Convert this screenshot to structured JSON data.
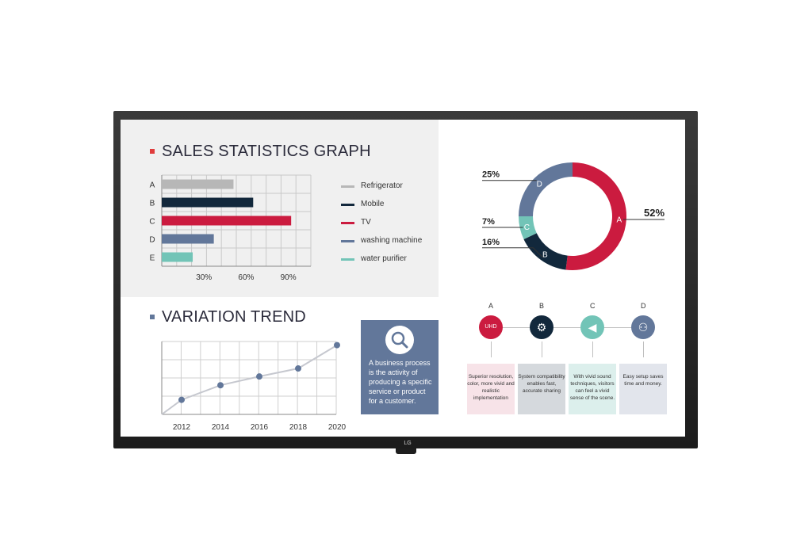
{
  "sales_section": {
    "title": "SALES STATISTICS GRAPH",
    "legend": [
      {
        "label": "Refrigerator",
        "color": "#b7b7b7"
      },
      {
        "label": "Mobile",
        "color": "#12283c"
      },
      {
        "label": "TV",
        "color": "#cb1b3f"
      },
      {
        "label": "washing machine",
        "color": "#62779a"
      },
      {
        "label": "water purifier",
        "color": "#72c4b7"
      }
    ]
  },
  "variation_section": {
    "title": "VARIATION TREND"
  },
  "info_box": {
    "text": "A business process is the activity of producing a specific service or product for a customer.",
    "icon": "magnifier-icon"
  },
  "features": [
    {
      "letter": "A",
      "icon": "uhd-icon",
      "color": "#cb1b3f",
      "box_color": "#f7e3e8",
      "text": "Superior resolution, color, more vivid and realistic implementation",
      "icon_text": "UHD"
    },
    {
      "letter": "B",
      "icon": "gear-icon",
      "color": "#12283c",
      "box_color": "#d5d9dd",
      "text": "System compatibility enables fast, accurate sharing",
      "icon_text": "⚙"
    },
    {
      "letter": "C",
      "icon": "speaker-icon",
      "color": "#72c4b7",
      "box_color": "#dcefec",
      "text": "With vivid sound techniques, visitors can feel a vivid sense of the scene.",
      "icon_text": "◀"
    },
    {
      "letter": "D",
      "icon": "network-icon",
      "color": "#62779a",
      "box_color": "#e2e5ec",
      "text": "Easy setup saves time and money.",
      "icon_text": "⚇"
    }
  ],
  "brand": {
    "logo": "LG"
  },
  "chart_data": [
    {
      "type": "bar",
      "orientation": "horizontal",
      "title": "SALES STATISTICS GRAPH",
      "categories": [
        "A",
        "B",
        "C",
        "D",
        "E"
      ],
      "series_names": [
        "Refrigerator",
        "Mobile",
        "TV",
        "washing machine",
        "water purifier"
      ],
      "values": [
        51,
        65,
        92,
        37,
        22
      ],
      "colors": [
        "#b7b7b7",
        "#12283c",
        "#cb1b3f",
        "#62779a",
        "#72c4b7"
      ],
      "xticks": [
        "30%",
        "60%",
        "90%"
      ],
      "xlim": [
        0,
        106
      ],
      "grid": true,
      "legend": "right"
    },
    {
      "type": "line",
      "title": "VARIATION TREND",
      "x": [
        "2012",
        "2014",
        "2016",
        "2018",
        "2020"
      ],
      "y": [
        20,
        40,
        52,
        63,
        95
      ],
      "ylim": [
        0,
        100
      ],
      "color": "#62779a",
      "grid": true
    },
    {
      "type": "pie",
      "donut": true,
      "labels": [
        "A",
        "B",
        "C",
        "D"
      ],
      "values": [
        52,
        16,
        7,
        25
      ],
      "percent_labels": [
        "52%",
        "16%",
        "7%",
        "25%"
      ],
      "colors": [
        "#cb1b3f",
        "#12283c",
        "#72c4b7",
        "#62779a"
      ]
    }
  ]
}
